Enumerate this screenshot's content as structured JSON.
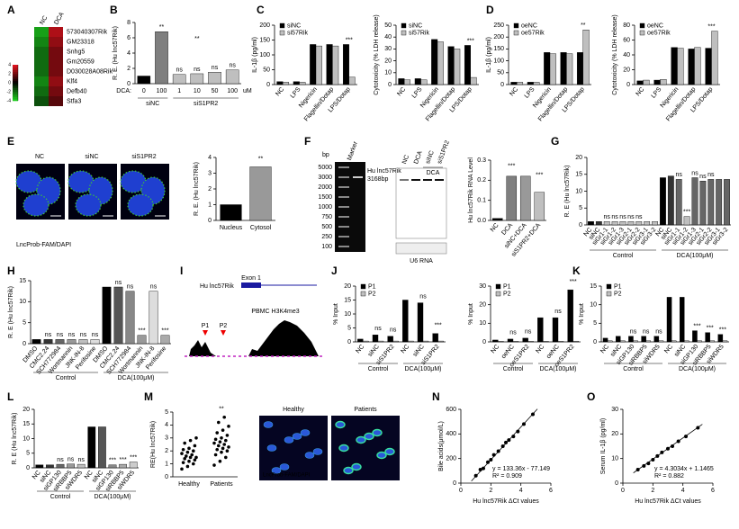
{
  "panels": [
    "A",
    "B",
    "C",
    "D",
    "E",
    "F",
    "G",
    "H",
    "I",
    "J",
    "K",
    "L",
    "M",
    "N",
    "O"
  ],
  "panel_E": {
    "images": [
      "NC",
      "siNC",
      "siS1PR2"
    ],
    "caption": "LncProb-FAM/DAPI"
  },
  "panel_F": {
    "ladder_title": "bp",
    "marker": "Marker",
    "ladder": [
      "5000",
      "3000",
      "2000",
      "1500",
      "1000",
      "750",
      "500",
      "250",
      "100"
    ],
    "band_label": "Hu lnc57Rik",
    "band_size": "3168bp",
    "lanes": [
      "NC",
      "DCA",
      "siNC",
      "siS1PR2"
    ],
    "lane_group": "DCA",
    "loading": "U6 RNA"
  },
  "panel_I": {
    "gene": "Hu lnc57Rik",
    "exon": "Exon 1",
    "primers": [
      "P1",
      "P2"
    ],
    "track": "PBMC H3K4me3"
  },
  "panel_M": {
    "groups": [
      "Healthy",
      "Patients"
    ],
    "caption": "LncProb-FAM/DAPI"
  },
  "chart_data": [
    {
      "type": "bar",
      "ylabel": "R. E. (Hu lnc57Rik)",
      "x_prefix": "DCA:",
      "x_unit": "uM",
      "categories": [
        "0",
        "100",
        "1",
        "10",
        "50",
        "100"
      ],
      "groups": [
        "siNC",
        "siS1PR2"
      ],
      "values": [
        1,
        6.8,
        1.2,
        1.3,
        1.5,
        1.8
      ],
      "colors": [
        "#000000",
        "#7f7f7f",
        "#bfbfbf",
        "#bfbfbf",
        "#bfbfbf",
        "#bfbfbf"
      ],
      "ylim": [
        0,
        8
      ],
      "yticks": [
        0,
        2,
        4,
        6,
        8
      ],
      "annotations": [
        "**",
        "ns",
        "ns",
        "ns",
        "ns",
        "**"
      ]
    },
    {
      "type": "bar",
      "ylabel": "IL-1β (pg/ml)",
      "categories": [
        "NC",
        "LPS",
        "Nigericin",
        "Flagellin/Dotap",
        "LPS/Dotap"
      ],
      "series": [
        {
          "name": "siNC",
          "color": "#000000",
          "values": [
            10,
            10,
            135,
            135,
            135
          ]
        },
        {
          "name": "si57Rik",
          "color": "#bfbfbf",
          "values": [
            8,
            8,
            130,
            130,
            25
          ]
        }
      ],
      "ylim": [
        0,
        200
      ],
      "yticks": [
        0,
        50,
        100,
        150,
        200
      ],
      "annotations": [
        "***"
      ]
    },
    {
      "type": "bar",
      "ylabel": "Cytotoxicity (% LDH release)",
      "categories": [
        "NC",
        "LPS",
        "Nigericin",
        "Flagellin/Dotap",
        "LPS/Dotap"
      ],
      "series": [
        {
          "name": "siNC",
          "color": "#000000",
          "values": [
            5,
            5,
            38,
            32,
            33
          ]
        },
        {
          "name": "si57Rik",
          "color": "#bfbfbf",
          "values": [
            4,
            4,
            36,
            30,
            6
          ]
        }
      ],
      "ylim": [
        0,
        50
      ],
      "yticks": [
        0,
        10,
        20,
        30,
        40,
        50
      ],
      "annotations": [
        "***"
      ]
    },
    {
      "type": "bar",
      "ylabel": "IL-1β (pg/ml)",
      "categories": [
        "NC",
        "LPS",
        "Nigericin",
        "Flagellin/Dotap",
        "LPS/Dotap"
      ],
      "series": [
        {
          "name": "oeNC",
          "color": "#000000",
          "values": [
            10,
            10,
            135,
            135,
            135
          ]
        },
        {
          "name": "oe57Rik",
          "color": "#bfbfbf",
          "values": [
            10,
            10,
            130,
            130,
            230
          ]
        }
      ],
      "ylim": [
        0,
        250
      ],
      "yticks": [
        0,
        50,
        100,
        150,
        200,
        250
      ],
      "annotations": [
        "**"
      ]
    },
    {
      "type": "bar",
      "ylabel": "Cytotoxicity (% LDH release)",
      "categories": [
        "NC",
        "LPS",
        "Nigericin",
        "Flagellin/Dotap",
        "LPS/Dotap"
      ],
      "series": [
        {
          "name": "oeNC",
          "color": "#000000",
          "values": [
            5,
            6,
            50,
            48,
            49
          ]
        },
        {
          "name": "oe57Rik",
          "color": "#bfbfbf",
          "values": [
            6,
            7,
            49,
            50,
            72
          ]
        }
      ],
      "ylim": [
        0,
        80
      ],
      "yticks": [
        0,
        20,
        40,
        60,
        80
      ],
      "annotations": [
        "***"
      ]
    },
    {
      "type": "bar",
      "ylabel": "R. E. (Hu lnc57Rik)",
      "categories": [
        "Nucleus",
        "Cytosol"
      ],
      "values": [
        1,
        3.4
      ],
      "colors": [
        "#000000",
        "#999999"
      ],
      "ylim": [
        0,
        4
      ],
      "yticks": [
        0,
        1,
        2,
        3,
        4
      ],
      "annotations": [
        "**"
      ]
    },
    {
      "type": "bar",
      "ylabel": "Hu lnc57Rik RNA Level",
      "categories": [
        "NC",
        "DCA",
        "siNC+DCA",
        "siS1PR2+DCA"
      ],
      "values": [
        0.01,
        0.22,
        0.22,
        0.14
      ],
      "colors": [
        "#000000",
        "#7f7f7f",
        "#999999",
        "#bfbfbf"
      ],
      "ylim": [
        0,
        0.3
      ],
      "yticks": [
        {
          "value": 0,
          "label": "0.0"
        },
        0.1,
        0.2,
        0.3
      ],
      "annotations": [
        "***",
        "***"
      ]
    },
    {
      "type": "bar",
      "ylabel": "R. E (Hu lnc57Rik)",
      "categories": [
        "NC",
        "siNC",
        "siGr1-1",
        "siGr1-2",
        "siGr1-3",
        "siGr2-1",
        "siGr2-2",
        "siGr3-1",
        "siGr3-2",
        "NC",
        "siNC",
        "siGr1-1",
        "siGr1-2",
        "siGr1-3",
        "siGr2-1",
        "siGr2-2",
        "siGr3-1",
        "siGr3-2"
      ],
      "groups": [
        "Control",
        "DCA(100μM)"
      ],
      "values": [
        1,
        1,
        1,
        1,
        1,
        1,
        1,
        1,
        1,
        14,
        14.5,
        13.5,
        2.5,
        14,
        13,
        13.5,
        13.5,
        13.5
      ],
      "colors": [
        "#000000",
        "#333333",
        "#bfbfbf",
        "#bfbfbf",
        "#bfbfbf",
        "#bfbfbf",
        "#bfbfbf",
        "#bfbfbf",
        "#bfbfbf",
        "#000000",
        "#333333",
        "#666666",
        "#bfbfbf",
        "#666666",
        "#666666",
        "#666666",
        "#666666",
        "#666666"
      ],
      "ylim": [
        0,
        20
      ],
      "yticks": [
        0,
        5,
        10,
        15,
        20
      ],
      "annotations": [
        "ns",
        "ns",
        "ns",
        "ns",
        "ns",
        "ns",
        "***",
        "ns",
        "ns",
        "ns"
      ]
    },
    {
      "type": "bar",
      "ylabel": "R. E (Hu lnc57Rik)",
      "categories": [
        "DMSO",
        "CMC2.24",
        "SCH772984",
        "Wortmannin",
        "JNK-IN-8",
        "Perifosine",
        "DMSO",
        "CMC2.24",
        "SCH772984",
        "Wortmannin",
        "JNK-IN-8",
        "Perifosine"
      ],
      "groups": [
        "Control",
        "DCA(100μM)"
      ],
      "values": [
        1,
        1,
        1,
        1,
        1,
        1,
        13.5,
        13.5,
        12.5,
        2,
        12.5,
        2
      ],
      "colors": [
        "#000000",
        "#333333",
        "#666666",
        "#999999",
        "#bfbfbf",
        "#dddddd",
        "#000000",
        "#555555",
        "#888888",
        "#999999",
        "#dddddd",
        "#aaaaaa"
      ],
      "ylim": [
        0,
        15
      ],
      "yticks": [
        0,
        5,
        10,
        15
      ],
      "annotations": [
        "ns",
        "ns",
        "ns",
        "ns",
        "ns",
        "ns",
        "ns",
        "***",
        "ns",
        "***"
      ]
    },
    {
      "type": "bar",
      "ylabel": "% Input",
      "categories": [
        "NC",
        "siNC",
        "siS1PR2",
        "NC",
        "siNC",
        "siS1PR2"
      ],
      "groups": [
        "Control",
        "DCA(100μM)"
      ],
      "series": [
        {
          "name": "P1",
          "color": "#000000",
          "values": [
            1,
            2.5,
            2,
            15,
            14,
            3
          ]
        },
        {
          "name": "P2",
          "color": "#bfbfbf",
          "values": [
            0.3,
            0.3,
            0.3,
            0.3,
            0.3,
            0.3
          ]
        }
      ],
      "ylim": [
        0,
        20
      ],
      "yticks": [
        0,
        5,
        10,
        15,
        20
      ],
      "annotations": [
        "ns",
        "ns",
        "ns",
        "***"
      ]
    },
    {
      "type": "bar",
      "ylabel": "% Input",
      "categories": [
        "NC",
        "oeNC",
        "oeS1PR2",
        "NC",
        "oeNC",
        "oeS1PR2"
      ],
      "groups": [
        "Control",
        "DCA(100μM)"
      ],
      "series": [
        {
          "name": "P1",
          "color": "#000000",
          "values": [
            1,
            1.5,
            2,
            13,
            13,
            28
          ]
        },
        {
          "name": "P2",
          "color": "#bfbfbf",
          "values": [
            0.3,
            0.3,
            0.3,
            0.3,
            0.3,
            0.4
          ]
        }
      ],
      "ylim": [
        0,
        30
      ],
      "yticks": [
        0,
        10,
        20,
        30
      ],
      "annotations": [
        "ns",
        "ns",
        "ns",
        "***"
      ]
    },
    {
      "type": "bar",
      "ylabel": "% Input",
      "categories": [
        "NC",
        "siNC",
        "siGP130",
        "siRBBP5",
        "siWDR5",
        "NC",
        "siNC",
        "siGP130",
        "siRBBP5",
        "siWDR5"
      ],
      "groups": [
        "Control",
        "DCA(100μM)"
      ],
      "series": [
        {
          "name": "P1",
          "color": "#000000",
          "values": [
            1,
            1.5,
            1.5,
            1.5,
            1.5,
            12,
            12,
            3,
            2.5,
            2
          ]
        },
        {
          "name": "P2",
          "color": "#bfbfbf",
          "values": [
            0.3,
            0.3,
            0.3,
            0.3,
            0.3,
            0.3,
            0.3,
            0.3,
            0.3,
            0.3
          ]
        }
      ],
      "ylim": [
        0,
        15
      ],
      "yticks": [
        0,
        5,
        10,
        15
      ],
      "annotations": [
        "ns",
        "ns",
        "ns",
        "***",
        "***",
        "***"
      ]
    },
    {
      "type": "bar",
      "ylabel": "R. E (Hu lnc57Rik)",
      "categories": [
        "NC",
        "siNC",
        "siGP130",
        "siRBBP5",
        "siWDR5",
        "NC",
        "siNC",
        "siGP130",
        "siRBBP5",
        "siWDR5"
      ],
      "groups": [
        "Control",
        "DCA(100μM)"
      ],
      "values": [
        1,
        1,
        1.2,
        1.3,
        1.2,
        14,
        14,
        1,
        1.2,
        2
      ],
      "colors": [
        "#000000",
        "#333333",
        "#666666",
        "#999999",
        "#bfbfbf",
        "#000000",
        "#555555",
        "#888888",
        "#aaaaaa",
        "#cccccc"
      ],
      "ylim": [
        0,
        20
      ],
      "yticks": [
        0,
        5,
        10,
        15,
        20
      ],
      "annotations": [
        "ns",
        "ns",
        "ns",
        "***",
        "***",
        "***"
      ]
    },
    {
      "type": "dot",
      "ylabel": "RE(Hu lnc57Rik)",
      "categories": [
        "Healthy",
        "Patients"
      ],
      "values": [
        [
          0.6,
          0.8,
          1.0,
          1.1,
          1.2,
          1.3,
          1.4,
          1.5,
          1.5,
          1.6,
          1.7,
          1.8,
          1.9,
          2.0,
          2.1,
          2.2,
          2.4,
          2.6,
          2.8,
          3.0
        ],
        [
          0.9,
          1.2,
          1.5,
          1.7,
          1.9,
          2.0,
          2.1,
          2.2,
          2.3,
          2.4,
          2.5,
          2.6,
          2.7,
          2.8,
          2.9,
          3.0,
          3.2,
          3.4,
          3.6,
          3.9,
          4.2,
          4.6
        ]
      ],
      "color": "#000000",
      "ylim": [
        0,
        5
      ],
      "yticks": [
        0,
        1,
        2,
        3,
        4,
        5
      ],
      "annotations": [
        "**"
      ]
    },
    {
      "type": "scatter",
      "xlabel": "Hu lnc57Rik ΔCt values",
      "ylabel": "Bile acids(μmol/L)",
      "x": [
        1.0,
        1.3,
        1.5,
        1.8,
        2.0,
        2.2,
        2.5,
        2.8,
        3.0,
        3.2,
        3.5,
        3.8,
        4.2,
        4.8
      ],
      "values": [
        60,
        110,
        120,
        170,
        190,
        230,
        260,
        300,
        330,
        350,
        380,
        420,
        480,
        560
      ],
      "color": "#000000",
      "xlim": [
        0,
        6
      ],
      "xticks": [
        0,
        2,
        4,
        6
      ],
      "ylim": [
        0,
        600
      ],
      "yticks": [
        0,
        200,
        400,
        600
      ],
      "trendline": {
        "slope": 133.36,
        "intercept": -77.149,
        "label": "y = 133.36x - 77.149",
        "r2_label": "R² = 0.909"
      }
    },
    {
      "type": "scatter",
      "xlabel": "Hu lnc57Rik ΔCt values",
      "ylabel": "Serum IL-1β (pg/ml)",
      "x": [
        1.0,
        1.4,
        1.7,
        2.0,
        2.3,
        2.6,
        3.0,
        3.3,
        3.7,
        4.2,
        5.0
      ],
      "values": [
        5.5,
        7,
        8,
        9.5,
        11,
        12.5,
        14,
        15,
        17,
        19,
        22.5
      ],
      "color": "#000000",
      "xlim": [
        0,
        6
      ],
      "xticks": [
        0,
        2,
        4,
        6
      ],
      "ylim": [
        0,
        30
      ],
      "yticks": [
        0,
        10,
        20,
        30
      ],
      "trendline": {
        "slope": 4.3034,
        "intercept": 1.1465,
        "label": "y = 4.3034x + 1.1465",
        "r2_label": "R² = 0.882"
      }
    },
    {
      "type": "heatmap",
      "columns": [
        "NC",
        "DCA"
      ],
      "rows": [
        "573040307Rik",
        "GM23318",
        "Snhg5",
        "Gm20559",
        "D030028A08Rik",
        "Klf4",
        "Defb40",
        "Stfa3"
      ],
      "values": [
        [
          -3,
          3
        ],
        [
          -2.5,
          2.5
        ],
        [
          -2,
          2
        ],
        [
          -2,
          2
        ],
        [
          -2,
          2
        ],
        [
          -2.5,
          2.5
        ],
        [
          -2,
          2
        ],
        [
          -1.5,
          1.5
        ]
      ],
      "zlim": [
        -4,
        4
      ],
      "zticks": [
        4,
        2,
        0,
        -2,
        -4
      ],
      "colormap": [
        "#1fd51f",
        "#000000",
        "#e8141e"
      ],
      "highlight_rows": [
        0
      ],
      "highlight_color": "#e8141e"
    }
  ]
}
